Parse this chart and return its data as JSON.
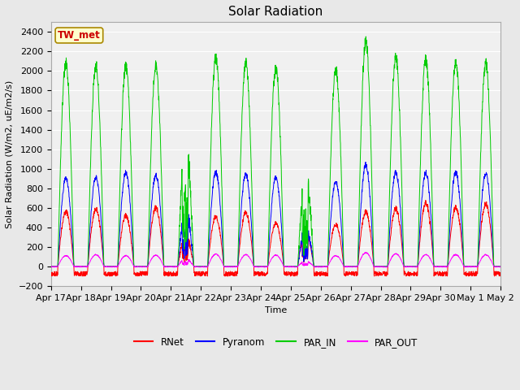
{
  "title": "Solar Radiation",
  "ylabel": "Solar Radiation (W/m2, uE/m2/s)",
  "xlabel": "Time",
  "ylim": [
    -200,
    2500
  ],
  "yticks": [
    -200,
    0,
    200,
    400,
    600,
    800,
    1000,
    1200,
    1400,
    1600,
    1800,
    2000,
    2200,
    2400
  ],
  "fig_bg": "#e8e8e8",
  "plot_bg": "#f0f0f0",
  "grid_color": "#ffffff",
  "colors": {
    "RNet": "#ff0000",
    "Pyranom": "#0000ff",
    "PAR_IN": "#00cc00",
    "PAR_OUT": "#ff00ff"
  },
  "station_label": "TW_met",
  "station_box_facecolor": "#ffffcc",
  "station_box_edgecolor": "#aa8800",
  "n_days": 15,
  "xtick_labels": [
    "Apr 17",
    "Apr 18",
    "Apr 19",
    "Apr 20",
    "Apr 21",
    "Apr 22",
    "Apr 23",
    "Apr 24",
    "Apr 25",
    "Apr 26",
    "Apr 27",
    "Apr 28",
    "Apr 29",
    "Apr 30",
    "May 1",
    "May 2"
  ],
  "title_fontsize": 11,
  "label_fontsize": 8,
  "tick_fontsize": 8,
  "par_in_peaks": [
    2080,
    2060,
    2050,
    2050,
    1440,
    2140,
    2080,
    2030,
    1050,
    2010,
    2300,
    2140,
    2110,
    2110,
    2080
  ],
  "pyranom_peaks": [
    900,
    910,
    960,
    935,
    640,
    960,
    940,
    910,
    450,
    870,
    1040,
    960,
    960,
    960,
    950
  ],
  "rnet_peaks": [
    560,
    590,
    520,
    600,
    350,
    510,
    550,
    440,
    420,
    430,
    560,
    590,
    650,
    610,
    640
  ],
  "par_out_peaks": [
    110,
    120,
    110,
    115,
    90,
    125,
    120,
    115,
    60,
    110,
    140,
    130,
    120,
    120,
    120
  ],
  "cloudy_days": [
    4,
    8
  ],
  "rnet_night_min": -100,
  "rnet_night_max": -50
}
